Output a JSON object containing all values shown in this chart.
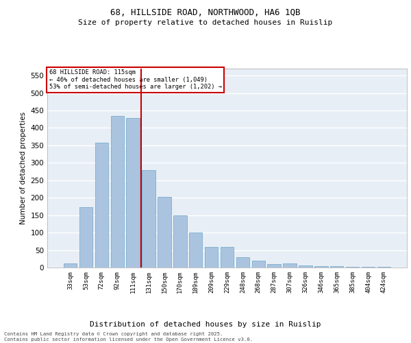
{
  "title_line1": "68, HILLSIDE ROAD, NORTHWOOD, HA6 1QB",
  "title_line2": "Size of property relative to detached houses in Ruislip",
  "xlabel": "Distribution of detached houses by size in Ruislip",
  "ylabel": "Number of detached properties",
  "categories": [
    "33sqm",
    "53sqm",
    "72sqm",
    "92sqm",
    "111sqm",
    "131sqm",
    "150sqm",
    "170sqm",
    "189sqm",
    "209sqm",
    "229sqm",
    "248sqm",
    "268sqm",
    "287sqm",
    "307sqm",
    "326sqm",
    "346sqm",
    "365sqm",
    "385sqm",
    "404sqm",
    "424sqm"
  ],
  "values": [
    12,
    172,
    357,
    435,
    428,
    280,
    202,
    150,
    100,
    58,
    58,
    30,
    20,
    10,
    11,
    6,
    4,
    3,
    1,
    1,
    2
  ],
  "bar_color": "#aac4e0",
  "bar_edge_color": "#7aadd0",
  "vline_x_index": 4,
  "vline_color": "#cc0000",
  "annotation_title": "68 HILLSIDE ROAD: 115sqm",
  "annotation_line2": "← 46% of detached houses are smaller (1,049)",
  "annotation_line3": "53% of semi-detached houses are larger (1,202) →",
  "annotation_box_color": "#cc0000",
  "ylim": [
    0,
    570
  ],
  "yticks": [
    0,
    50,
    100,
    150,
    200,
    250,
    300,
    350,
    400,
    450,
    500,
    550
  ],
  "bg_color": "#e8eef5",
  "grid_color": "#ffffff",
  "footer_line1": "Contains HM Land Registry data © Crown copyright and database right 2025.",
  "footer_line2": "Contains public sector information licensed under the Open Government Licence v3.0."
}
